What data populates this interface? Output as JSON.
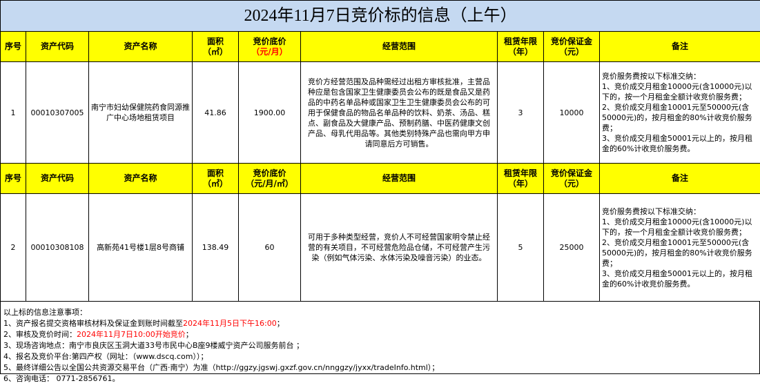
{
  "title": "2024年11月7日竞价标的信息（上午）",
  "sections": [
    {
      "header": [
        [
          "序号"
        ],
        [
          "资产代码"
        ],
        [
          "资产名称"
        ],
        [
          "面积",
          "（㎡）"
        ],
        [
          "竞价底价",
          {
            "text": "（元/月）",
            "color": "#ff0000"
          }
        ],
        [
          "经营范围"
        ],
        [
          "租赁年限",
          "（年）"
        ],
        [
          "竞价保证金",
          "（元）"
        ],
        [
          "备注"
        ]
      ],
      "row": [
        "1",
        "00010307005",
        "南宁市妇幼保健院药食同源推广中心场地租赁项目",
        "41.86",
        "1900.00",
        "竞价方经营范围及品种需经过出租方审核批准，主营品种应是包含国家卫生健康委员会公布的既是食品又是药品的中药名单品种或国家卫生卫生健康委员会公布的可用于保健食品的物品名单品种的饮料、奶茶、汤品、糕点、副食品及大健康产品、预制药膳、中医药健康文创产品、母乳代用品等。其他类别特殊产品也需向甲方申请同意后方可销售。",
        "3",
        "10000",
        [
          "竞价服务费按以下标准交纳：",
          "1、竞价成交月租金10000元(含10000元)以下的，按一个月租金全额计收竞价服务费；",
          "2、竞价成交月租金10001元至50000元(含50000元)的，按月租金的80%计收竞价服务费；",
          "3、竞价成交月租金50001元以上的，按月租金的60%计收竞价服务费。"
        ]
      ]
    },
    {
      "header": [
        [
          "序号"
        ],
        [
          "资产代码"
        ],
        [
          "资产名称"
        ],
        [
          "面积",
          "（㎡）"
        ],
        [
          "竞价底价",
          "（元/月/㎡）"
        ],
        [
          "经营范围"
        ],
        [
          "租赁年限",
          "（年）"
        ],
        [
          "竞价保证金",
          "（元）"
        ],
        [
          "备注"
        ]
      ],
      "row": [
        "2",
        "00010308108",
        "高新苑41号楼1层8号商铺",
        "138.49",
        "60",
        "可用于多种类型经营，竞价人不可经营国家明令禁止经营的有关项目，不可经营危险品仓储，不可经营产生污染（例如气体污染、水体污染及噪音污染）的业态。",
        "5",
        "25000",
        [
          "竞价服务费按以下标准交纳：",
          "1、竞价成交月租金10000元(含10000元)以下的，按一个月租金全额计收竞价服务费；",
          "2、竞价成交月租金10001元至50000元(含50000元)的，按月租金的80%计收竞价服务费；",
          "3、竞价成交月租金50001元以上的，按月租金的60%计收竞价服务费。"
        ]
      ]
    }
  ],
  "notes": {
    "heading": "以上标的信息注意事项：",
    "lines": [
      [
        {
          "text": "1、资产报名提交资格审核材料及保证金到账时间截至"
        },
        {
          "text": "2024年11月5日下午16:00",
          "color": "#ff0000"
        },
        {
          "text": "；"
        }
      ],
      [
        {
          "text": "2、审核及竞价时间："
        },
        {
          "text": "2024年11月7日10:00开始竞价",
          "color": "#ff0000"
        },
        {
          "text": "；"
        }
      ],
      [
        {
          "text": "3、现场咨询地点：南宁市良庆区玉洞大道33号市民中心B座9楼威宁资产公司服务前台 ；"
        }
      ],
      [
        {
          "text": "4、报名及竞价平台:第四产权（网址：（www.dscq.com））；"
        }
      ],
      [
        {
          "text": "5、最终详细公告以全国公共资源交易平台（广西·南宁）为准（http://ggzy.jgswj.gxzf.gov.cn/nnggzy/jyxx/tradeInfo.html）；"
        }
      ],
      [
        {
          "text": "6、咨询电话： 0771-2856761。"
        }
      ]
    ]
  }
}
